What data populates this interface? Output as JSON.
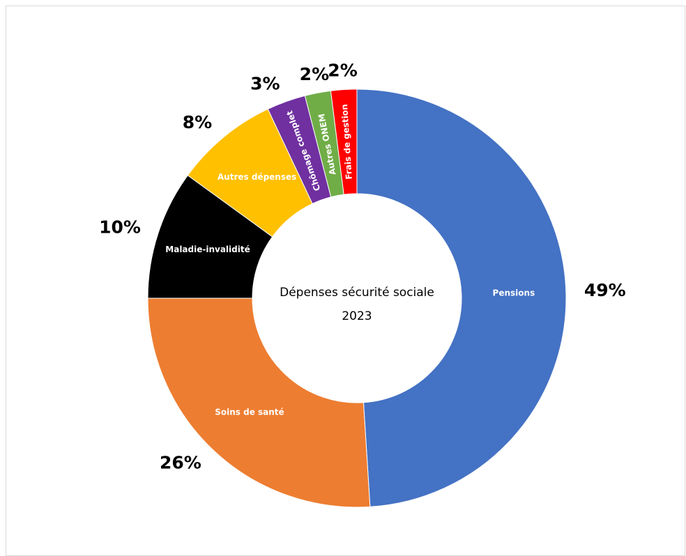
{
  "chart_data": {
    "type": "pie",
    "variant": "donut",
    "title": "Dépenses sécurité sociale",
    "subtitle": "2023",
    "legend": "none",
    "categories": [
      "Pensions",
      "Soins de santé",
      "Maladie-invalidité",
      "Autres dépenses",
      "Chômage complet",
      "Autres ONEM",
      "Frais de gestion"
    ],
    "values": [
      49,
      26,
      10,
      8,
      3,
      2,
      2
    ],
    "value_labels": [
      "49%",
      "26%",
      "10%",
      "8%",
      "3%",
      "2%",
      "2%"
    ],
    "colors": [
      "#4472C4",
      "#ED7D31",
      "#000000",
      "#FFC000",
      "#7030A0",
      "#70AD47",
      "#FF0000"
    ],
    "label_colors": [
      "#ffffff",
      "#ffffff",
      "#ffffff",
      "#ffffff",
      "#ffffff",
      "#ffffff",
      "#ffffff"
    ]
  }
}
